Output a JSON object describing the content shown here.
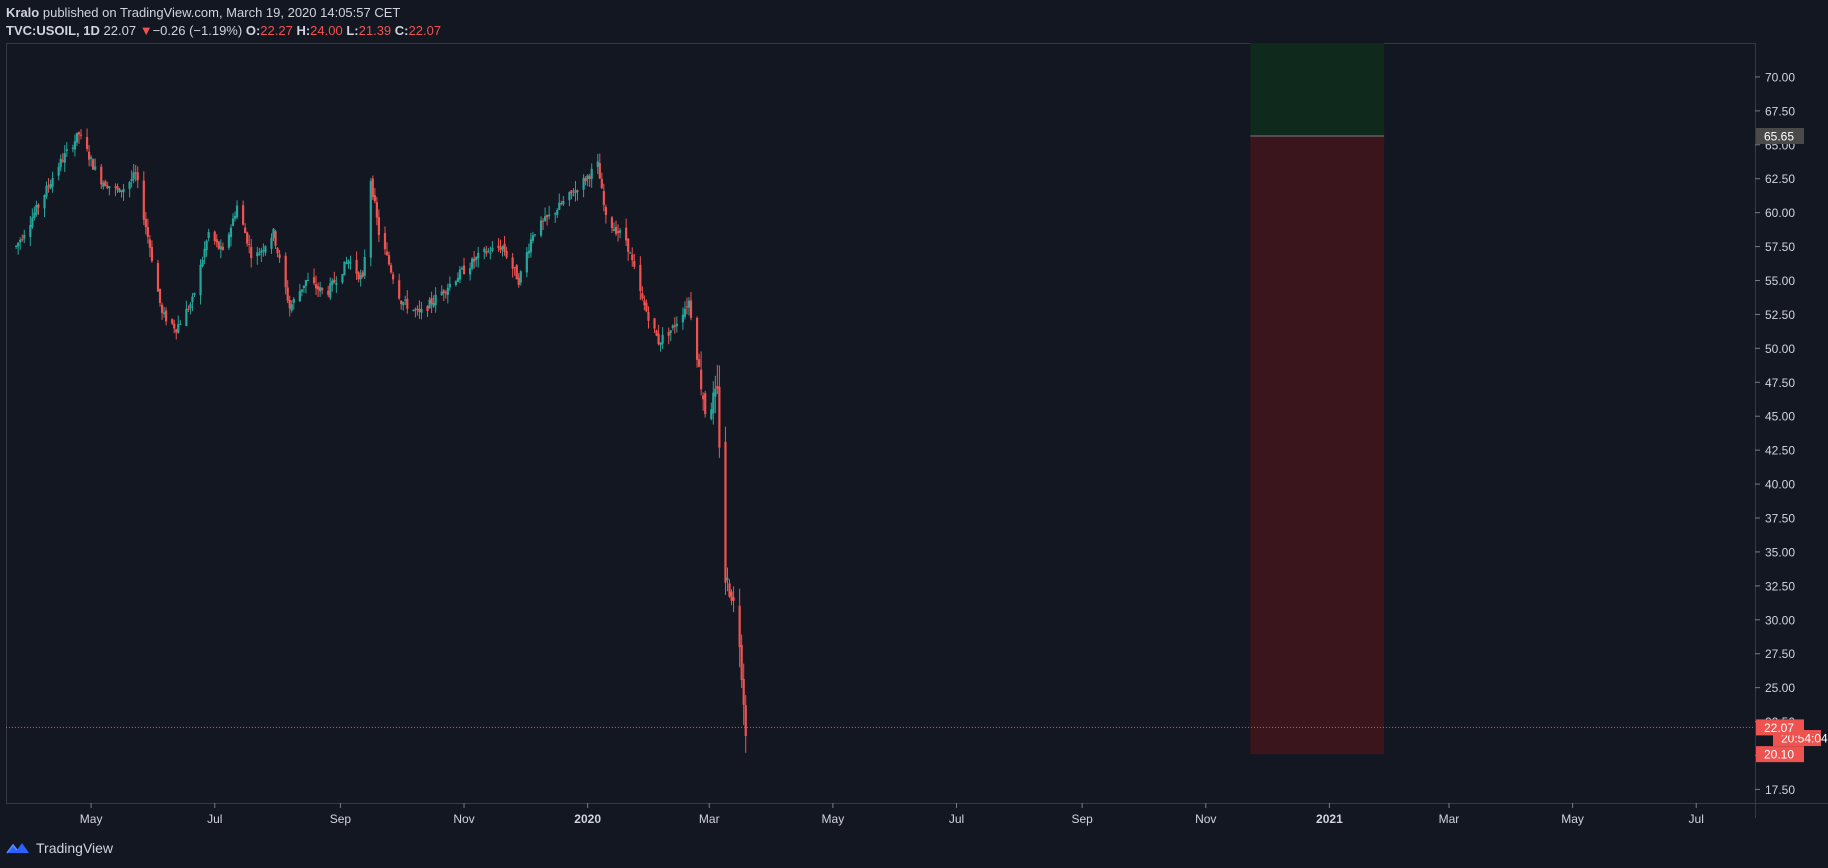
{
  "header": {
    "author": "Kralo",
    "published": "published on TradingView.com, March 19, 2020 14:05:57 CET",
    "symbol": "TVC:USOIL, 1D",
    "last": "22.07",
    "change_arrow": "▼",
    "change": "−0.26 (−1.19%)",
    "open_label": "O:",
    "open": "22.27",
    "high_label": "H:",
    "high": "24.00",
    "low_label": "L:",
    "low": "21.39",
    "close_label": "C:",
    "close": "22.07"
  },
  "footer": {
    "brand": "TradingView",
    "logo_icon": "tradingview-logo-icon"
  },
  "colors": {
    "background": "#131722",
    "up": "#26a69a",
    "down": "#ef5350",
    "profit_zone": "#0f2a1c",
    "loss_zone": "#3a161c",
    "axis_text": "#d1d4dc",
    "price_line": "#ef5350",
    "entry_tag": "#4a4a4a"
  },
  "chart_data": {
    "type": "candlestick",
    "y_ticks": [
      "70.00",
      "67.50",
      "65.00",
      "62.50",
      "60.00",
      "57.50",
      "55.00",
      "52.50",
      "50.00",
      "47.50",
      "45.00",
      "42.50",
      "40.00",
      "37.50",
      "35.00",
      "32.50",
      "30.00",
      "27.50",
      "25.00",
      "22.50",
      "20.00",
      "17.50"
    ],
    "ylim": [
      16.5,
      72.5
    ],
    "x_ticks": [
      "May",
      "Jul",
      "Sep",
      "Nov",
      "2020",
      "Mar",
      "May",
      "Jul",
      "Sep",
      "Nov",
      "2021",
      "Mar",
      "May",
      "Jul"
    ],
    "x_range_dates": [
      "2019-03-20",
      "2021-07-30"
    ],
    "price_path": [
      [
        "2019-03-25",
        57.5
      ],
      [
        "2019-04-05",
        60.5
      ],
      [
        "2019-04-15",
        63.5
      ],
      [
        "2019-04-25",
        65.8
      ],
      [
        "2019-05-05",
        62.5
      ],
      [
        "2019-05-15",
        61.5
      ],
      [
        "2019-05-23",
        62.8
      ],
      [
        "2019-05-30",
        57.5
      ],
      [
        "2019-06-05",
        52.5
      ],
      [
        "2019-06-12",
        51.5
      ],
      [
        "2019-06-20",
        53.5
      ],
      [
        "2019-06-28",
        58.5
      ],
      [
        "2019-07-05",
        57.0
      ],
      [
        "2019-07-12",
        60.5
      ],
      [
        "2019-07-20",
        56.5
      ],
      [
        "2019-07-30",
        58.5
      ],
      [
        "2019-08-07",
        53.0
      ],
      [
        "2019-08-15",
        55.0
      ],
      [
        "2019-08-25",
        54.0
      ],
      [
        "2019-09-05",
        56.5
      ],
      [
        "2019-09-12",
        55.0
      ],
      [
        "2019-09-16",
        62.5
      ],
      [
        "2019-09-20",
        58.5
      ],
      [
        "2019-10-01",
        53.5
      ],
      [
        "2019-10-10",
        52.5
      ],
      [
        "2019-10-20",
        54.0
      ],
      [
        "2019-10-30",
        55.5
      ],
      [
        "2019-11-10",
        57.0
      ],
      [
        "2019-11-20",
        57.5
      ],
      [
        "2019-11-28",
        55.0
      ],
      [
        "2019-12-05",
        58.5
      ],
      [
        "2019-12-15",
        60.0
      ],
      [
        "2019-12-25",
        61.5
      ],
      [
        "2020-01-06",
        63.5
      ],
      [
        "2020-01-10",
        59.5
      ],
      [
        "2020-01-20",
        58.0
      ],
      [
        "2020-01-28",
        53.5
      ],
      [
        "2020-02-05",
        50.5
      ],
      [
        "2020-02-12",
        51.5
      ],
      [
        "2020-02-20",
        53.5
      ],
      [
        "2020-02-28",
        45.5
      ],
      [
        "2020-03-05",
        46.5
      ],
      [
        "2020-03-09",
        33.0
      ],
      [
        "2020-03-12",
        32.0
      ],
      [
        "2020-03-16",
        28.5
      ],
      [
        "2020-03-19",
        22.07
      ]
    ],
    "last_price": 22.07,
    "last_price_label": "22.07",
    "position_tool": {
      "start_date": "2020-11-23",
      "end_date": "2021-01-28",
      "target_top": 72.5,
      "entry": 65.65,
      "entry_label": "65.65",
      "stop": 20.1,
      "stop_label": "20.10",
      "overlap_label": "20:54:04"
    }
  }
}
